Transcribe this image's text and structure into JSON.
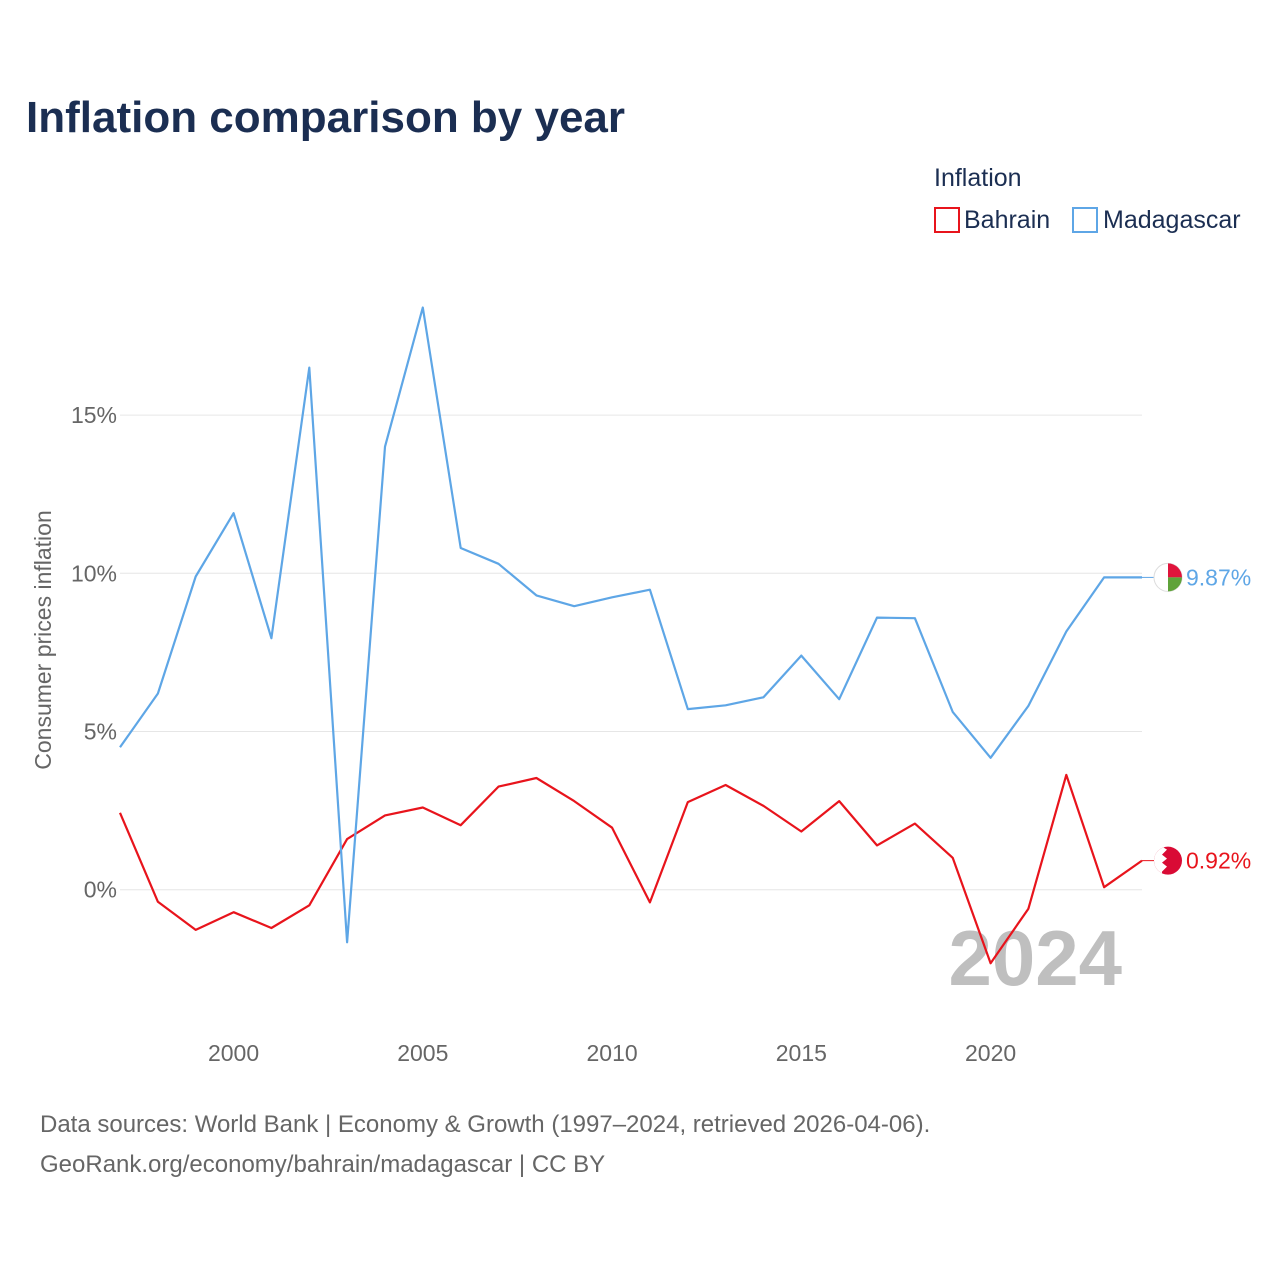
{
  "chart_data": {
    "type": "line",
    "title": "Inflation comparison by year",
    "ylabel": "Consumer prices inflation",
    "xlabel": "",
    "xlim": [
      1997,
      2024
    ],
    "ylim": [
      -3.8,
      19.9
    ],
    "x_ticks": [
      2000,
      2005,
      2010,
      2015,
      2020
    ],
    "y_ticks": [
      0,
      5,
      10,
      15
    ],
    "y_tick_labels": [
      "0%",
      "5%",
      "10%",
      "15%"
    ],
    "legend_title": "Inflation",
    "legend_position": "top-right",
    "watermark_year": "2024",
    "x": [
      1997,
      1998,
      1999,
      2000,
      2001,
      2002,
      2003,
      2004,
      2005,
      2006,
      2007,
      2008,
      2009,
      2010,
      2011,
      2012,
      2013,
      2014,
      2015,
      2016,
      2017,
      2018,
      2019,
      2020,
      2021,
      2022,
      2023,
      2024
    ],
    "series": [
      {
        "name": "Bahrain",
        "color": "#e8141c",
        "end_label": "0.92%",
        "flag": "bahrain",
        "values": [
          2.43,
          -0.38,
          -1.27,
          -0.71,
          -1.21,
          -0.49,
          1.6,
          2.35,
          2.6,
          2.04,
          3.26,
          3.53,
          2.8,
          1.96,
          -0.4,
          2.77,
          3.31,
          2.65,
          1.84,
          2.8,
          1.4,
          2.09,
          1.01,
          -2.32,
          -0.6,
          3.63,
          0.08,
          0.92
        ]
      },
      {
        "name": "Madagascar",
        "color": "#5ea6e6",
        "end_label": "9.87%",
        "flag": "madagascar",
        "values": [
          4.5,
          6.2,
          9.9,
          11.9,
          7.95,
          16.5,
          -1.66,
          14.0,
          18.4,
          10.8,
          10.3,
          9.3,
          8.96,
          9.24,
          9.48,
          5.71,
          5.83,
          6.08,
          7.4,
          6.02,
          8.6,
          8.58,
          5.62,
          4.17,
          5.81,
          8.16,
          9.87,
          9.87
        ]
      }
    ]
  },
  "source": {
    "line1": "Data sources: World Bank | Economy & Growth (1997–2024, retrieved 2026-04-06).",
    "line2": "GeoRank.org/economy/bahrain/madagascar | CC BY"
  }
}
